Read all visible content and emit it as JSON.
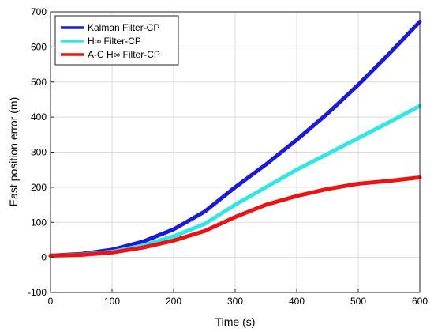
{
  "chart_data": {
    "type": "line",
    "xlabel": "Time (s)",
    "ylabel": "East position error (m)",
    "xlim": [
      0,
      600
    ],
    "ylim": [
      -100,
      700
    ],
    "xticks": [
      0,
      100,
      200,
      300,
      400,
      500,
      600
    ],
    "yticks": [
      -100,
      0,
      100,
      200,
      300,
      400,
      500,
      600,
      700
    ],
    "grid": true,
    "legend_position": "top-left",
    "series": [
      {
        "name": "Kalman Filter-CP",
        "color": "#1a1adb",
        "x": [
          0,
          50,
          100,
          150,
          200,
          250,
          300,
          350,
          400,
          450,
          500,
          550,
          600
        ],
        "y": [
          5,
          10,
          22,
          45,
          80,
          130,
          200,
          265,
          335,
          410,
          492,
          580,
          672
        ]
      },
      {
        "name": "H∞ Filter-CP",
        "color": "#33e6e6",
        "x": [
          0,
          50,
          100,
          150,
          200,
          250,
          300,
          350,
          400,
          450,
          500,
          550,
          600
        ],
        "y": [
          5,
          8,
          16,
          34,
          60,
          95,
          150,
          200,
          250,
          295,
          340,
          385,
          432
        ]
      },
      {
        "name": "A-C H∞ Filter-CP",
        "color": "#ee1111",
        "x": [
          0,
          50,
          100,
          150,
          200,
          250,
          300,
          350,
          400,
          450,
          500,
          550,
          600
        ],
        "y": [
          5,
          7,
          14,
          28,
          48,
          75,
          115,
          150,
          175,
          195,
          210,
          218,
          228
        ]
      }
    ]
  }
}
